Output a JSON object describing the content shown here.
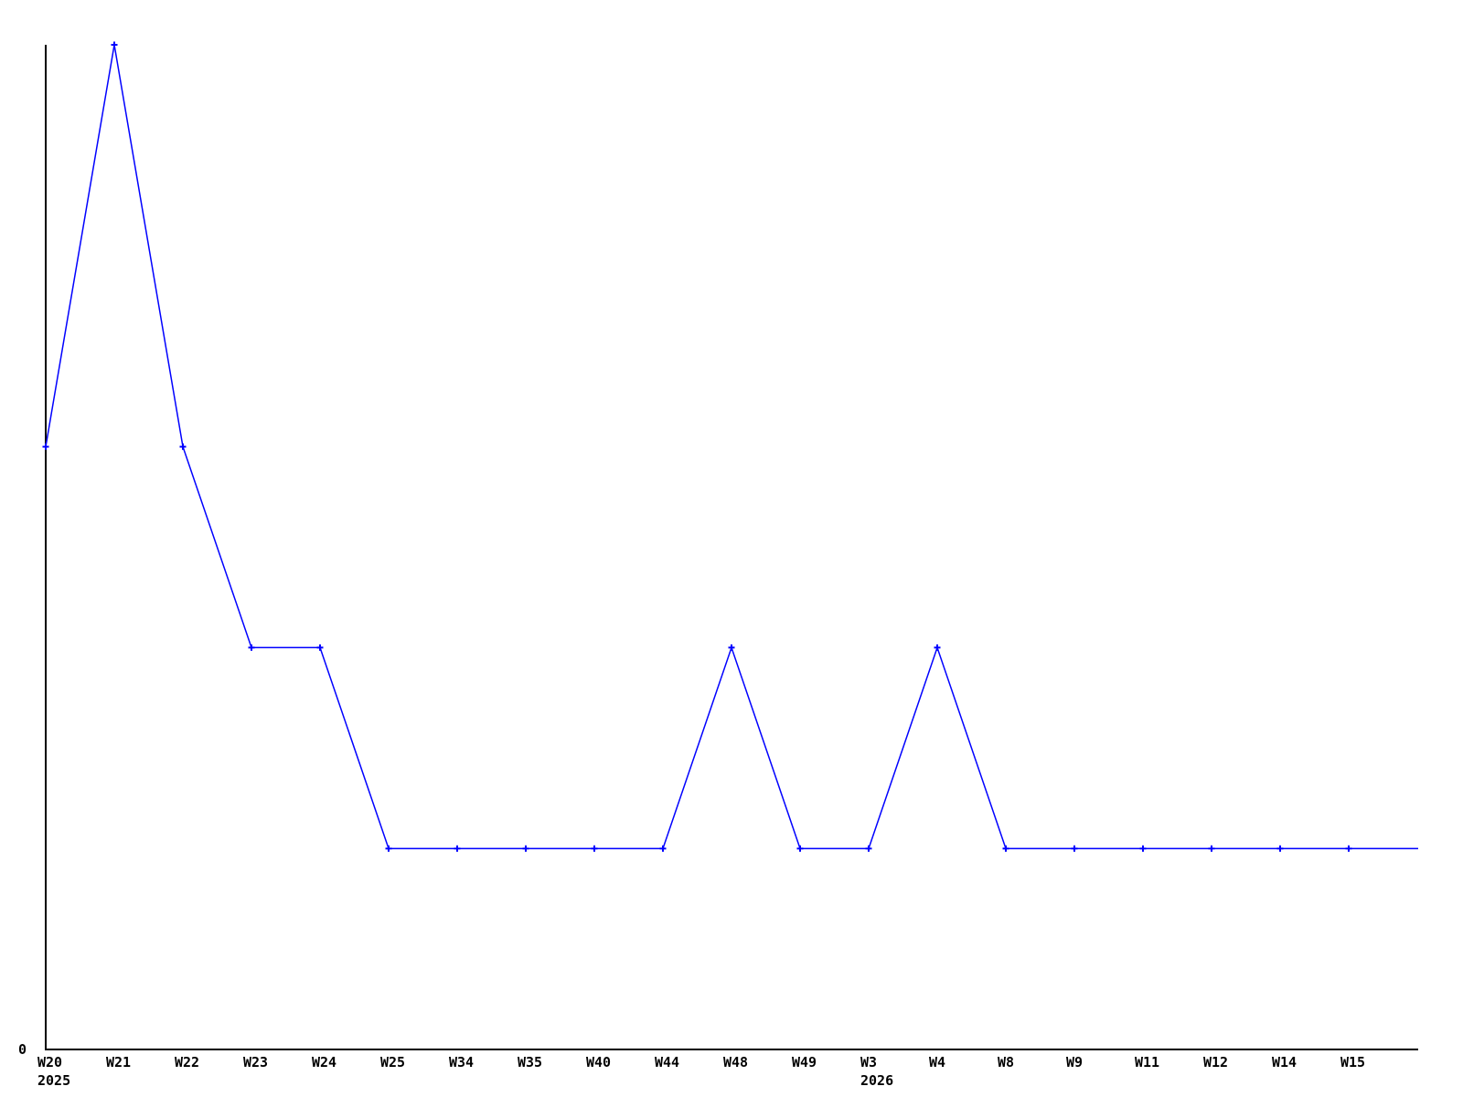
{
  "page": {
    "background_color": "#ffffff"
  },
  "chart_data": {
    "type": "line",
    "title": "",
    "categories": [
      "W20",
      "W21",
      "W22",
      "W23",
      "W24",
      "W25",
      "W34",
      "W35",
      "W40",
      "W44",
      "W48",
      "W49",
      "W3",
      "W4",
      "W8",
      "W9",
      "W11",
      "W12",
      "W14",
      "W15"
    ],
    "series": [
      {
        "color": "#0000ff",
        "values": [
          3,
          5,
          3,
          2,
          2,
          1,
          1,
          1,
          1,
          1,
          2,
          1,
          1,
          2,
          1,
          1,
          1,
          1,
          1,
          1
        ]
      }
    ],
    "year_markers": [
      {
        "category_index": 0,
        "label": "2025"
      },
      {
        "category_index": 12,
        "label": "2026"
      }
    ],
    "y_axis": {
      "min_label": "0",
      "ylim": [
        0,
        5
      ]
    },
    "xlabel": "",
    "ylabel": "",
    "grid": false,
    "legend": null,
    "marker": "plus-icon",
    "line_extends_to_right_edge": true,
    "colors": {
      "line": "#0000ff",
      "axis": "#000000",
      "text": "#000000",
      "background": "#ffffff"
    }
  }
}
